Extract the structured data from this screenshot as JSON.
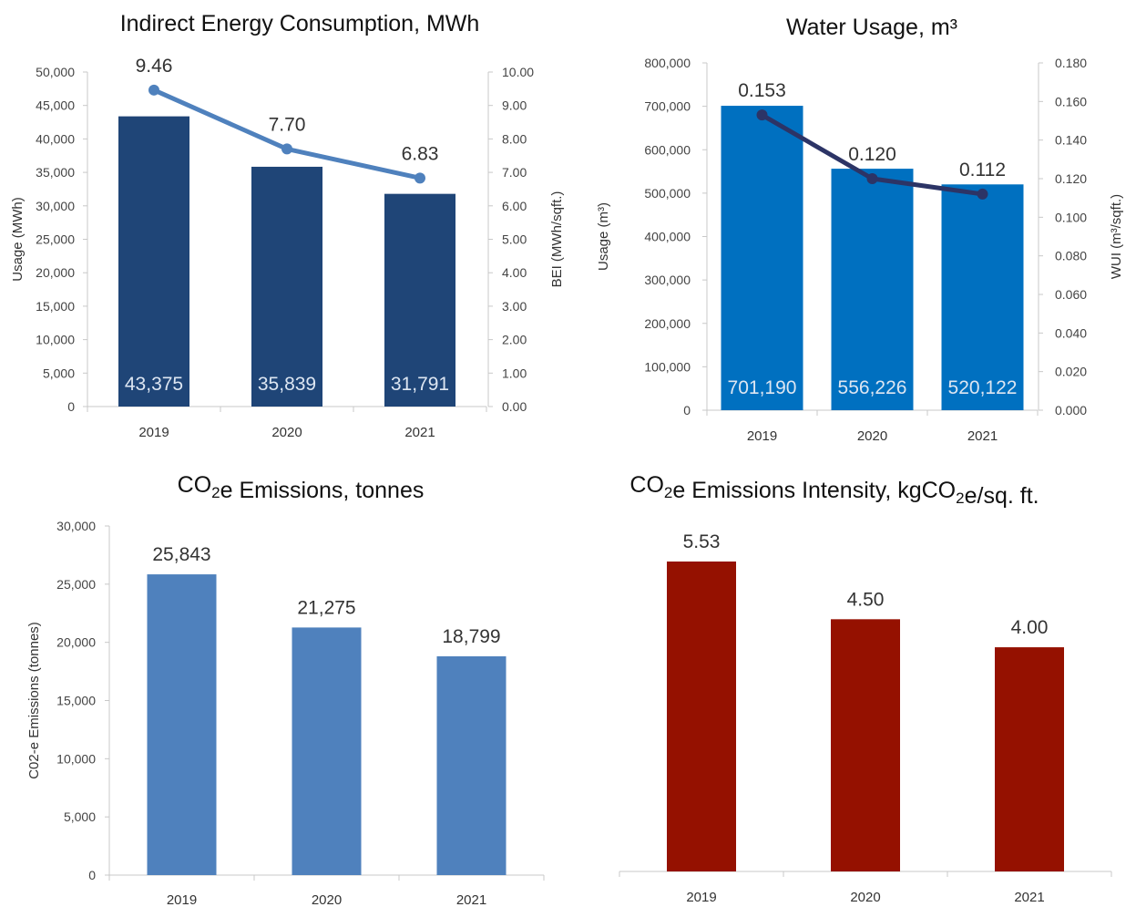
{
  "chart_data": [
    {
      "type": "bar",
      "title": "Indirect Energy Consumption, MWh",
      "categories": [
        "2019",
        "2020",
        "2021"
      ],
      "ylabel": "Usage (MWh)",
      "y2label": "BEI (MWh/sqft.)",
      "ylim": [
        0,
        50000
      ],
      "y2lim": [
        0,
        10
      ],
      "yticks": [
        "0",
        "5,000",
        "10,000",
        "15,000",
        "20,000",
        "25,000",
        "30,000",
        "35,000",
        "40,000",
        "45,000",
        "50,000"
      ],
      "y2ticks": [
        "0.00",
        "1.00",
        "2.00",
        "3.00",
        "4.00",
        "5.00",
        "6.00",
        "7.00",
        "8.00",
        "9.00",
        "10.00"
      ],
      "series": [
        {
          "type": "bar",
          "axis": "left",
          "values": [
            43375,
            35839,
            31791
          ],
          "labels": [
            "43,375",
            "35,839",
            "31,791"
          ],
          "color": "#1f4577"
        },
        {
          "type": "line",
          "axis": "right",
          "values": [
            9.46,
            7.7,
            6.83
          ],
          "labels": [
            "9.46",
            "7.70",
            "6.83"
          ],
          "color": "#4f81bd"
        }
      ]
    },
    {
      "type": "bar",
      "title": "Water Usage, m³",
      "categories": [
        "2019",
        "2020",
        "2021"
      ],
      "ylabel": "Usage (m³)",
      "y2label": "WUI (m³/sqft.)",
      "ylim": [
        0,
        800000
      ],
      "y2lim": [
        0,
        0.18
      ],
      "yticks": [
        "0",
        "100,000",
        "200,000",
        "300,000",
        "400,000",
        "500,000",
        "600,000",
        "700,000",
        "800,000"
      ],
      "y2ticks": [
        "0.000",
        "0.020",
        "0.040",
        "0.060",
        "0.080",
        "0.100",
        "0.120",
        "0.140",
        "0.160",
        "0.180"
      ],
      "series": [
        {
          "type": "bar",
          "axis": "left",
          "values": [
            701190,
            556226,
            520122
          ],
          "labels": [
            "701,190",
            "556,226",
            "520,122"
          ],
          "color": "#0070c0"
        },
        {
          "type": "line",
          "axis": "right",
          "values": [
            0.153,
            0.12,
            0.112
          ],
          "labels": [
            "0.153",
            "0.120",
            "0.112"
          ],
          "color": "#2c3466"
        }
      ]
    },
    {
      "type": "bar",
      "title": "CO₂e Emissions, tonnes",
      "categories": [
        "2019",
        "2020",
        "2021"
      ],
      "ylabel": "C02-e Emissions (tonnes)",
      "ylim": [
        0,
        30000
      ],
      "yticks": [
        "0",
        "5,000",
        "10,000",
        "15,000",
        "20,000",
        "25,000",
        "30,000"
      ],
      "series": [
        {
          "type": "bar",
          "axis": "left",
          "values": [
            25843,
            21275,
            18799
          ],
          "labels": [
            "25,843",
            "21,275",
            "18,799"
          ],
          "color": "#4f81bd"
        }
      ]
    },
    {
      "type": "bar",
      "title": "CO₂e Emissions Intensity, kgCO₂e/sq. ft.",
      "categories": [
        "2019",
        "2020",
        "2021"
      ],
      "ylim": [
        0,
        5.53
      ],
      "series": [
        {
          "type": "bar",
          "axis": "left",
          "values": [
            5.53,
            4.5,
            4.0
          ],
          "labels": [
            "5.53",
            "4.50",
            "4.00"
          ],
          "color": "#951100"
        }
      ]
    }
  ]
}
